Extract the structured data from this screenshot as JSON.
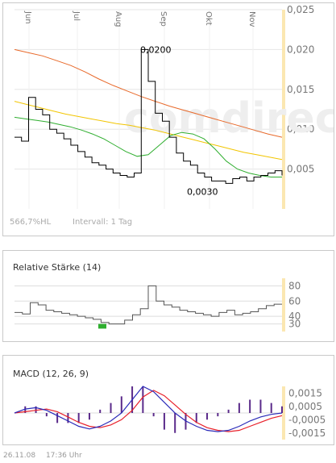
{
  "chart_data": [
    {
      "type": "line",
      "months": [
        "Jun",
        "Jul",
        "Aug",
        "Sep",
        "Okt",
        "Nov"
      ],
      "yticks": [
        "0,025",
        "0,020",
        "0,015",
        "0,010",
        "0,005"
      ],
      "ylim": [
        0.0,
        0.025
      ],
      "price": [
        0.009,
        0.0085,
        0.014,
        0.0125,
        0.0118,
        0.01,
        0.0095,
        0.0088,
        0.008,
        0.0072,
        0.0065,
        0.0058,
        0.0055,
        0.005,
        0.0045,
        0.0042,
        0.004,
        0.0045,
        0.02,
        0.016,
        0.012,
        0.011,
        0.009,
        0.007,
        0.006,
        0.0055,
        0.0045,
        0.004,
        0.0035,
        0.0035,
        0.0032,
        0.0038,
        0.004,
        0.0035,
        0.004,
        0.0042,
        0.0045,
        0.0048,
        0.0042
      ],
      "ma_green": [
        0.0115,
        0.0113,
        0.0111,
        0.0109,
        0.0106,
        0.0103,
        0.0099,
        0.0094,
        0.0088,
        0.008,
        0.0072,
        0.0066,
        0.0068,
        0.008,
        0.0092,
        0.0096,
        0.0094,
        0.0088,
        0.0075,
        0.006,
        0.005,
        0.0045,
        0.0042,
        0.004,
        0.004
      ],
      "ma_yellow": [
        0.0135,
        0.0131,
        0.0127,
        0.0123,
        0.0119,
        0.0116,
        0.0113,
        0.011,
        0.0107,
        0.0105,
        0.0102,
        0.0099,
        0.0095,
        0.0091,
        0.0087,
        0.0083,
        0.0079,
        0.0075,
        0.0071,
        0.0068,
        0.0065,
        0.0062
      ],
      "ma_orange": [
        0.02,
        0.0196,
        0.0192,
        0.0186,
        0.018,
        0.0172,
        0.0163,
        0.0155,
        0.0148,
        0.0141,
        0.0135,
        0.0129,
        0.0124,
        0.0119,
        0.0114,
        0.0109,
        0.0104,
        0.0099,
        0.0094,
        0.009
      ],
      "annotations": [
        {
          "label": "0,0200",
          "value": 0.02
        },
        {
          "label": "0,0030",
          "value": 0.003
        }
      ],
      "stats": [
        "566,7%HL",
        "Intervall: 1 Tag"
      ],
      "watermark": "comdirect"
    },
    {
      "type": "line",
      "title": "Relative Stärke (14)",
      "yticks": [
        "80",
        "60",
        "40",
        "30"
      ],
      "ylim": [
        20,
        90
      ],
      "values": [
        45,
        43,
        58,
        55,
        48,
        46,
        44,
        42,
        40,
        38,
        36,
        32,
        30,
        30,
        35,
        42,
        50,
        80,
        60,
        55,
        52,
        48,
        46,
        44,
        42,
        40,
        45,
        48,
        42,
        44,
        46,
        50,
        54,
        56,
        56
      ]
    },
    {
      "type": "line",
      "title": "MACD (12, 26, 9)",
      "yticks": [
        "0,0015",
        "0,0005",
        "-0,0005",
        "-0,0015"
      ],
      "ylim": [
        -0.002,
        0.002
      ],
      "macd": [
        0.0,
        0.0003,
        0.0004,
        0.0002,
        -0.0002,
        -0.0006,
        -0.001,
        -0.0012,
        -0.001,
        -0.0006,
        0.0,
        0.001,
        0.002,
        0.0016,
        0.0008,
        0.0,
        -0.0006,
        -0.001,
        -0.0013,
        -0.0014,
        -0.0013,
        -0.001,
        -0.0006,
        -0.0003,
        -0.0001,
        0.0
      ],
      "signal": [
        0.0,
        0.0001,
        0.0002,
        0.0003,
        0.0001,
        -0.0003,
        -0.0007,
        -0.001,
        -0.0011,
        -0.0009,
        -0.0005,
        0.0002,
        0.0012,
        0.0017,
        0.0013,
        0.0006,
        -0.0001,
        -0.0007,
        -0.0011,
        -0.0013,
        -0.0014,
        -0.0013,
        -0.001,
        -0.0007,
        -0.0004,
        -0.0002
      ]
    }
  ],
  "footer": {
    "date": "26.11.08",
    "time": "17:36 Uhr"
  },
  "colors": {
    "price": "#000000",
    "ma_green": "#2fae2f",
    "ma_yellow": "#f2c500",
    "ma_orange": "#e8692a",
    "axis_band": "#fbe7b1",
    "macd": "#2a2ab8",
    "signal": "#e8202a",
    "rsi": "#555555"
  }
}
